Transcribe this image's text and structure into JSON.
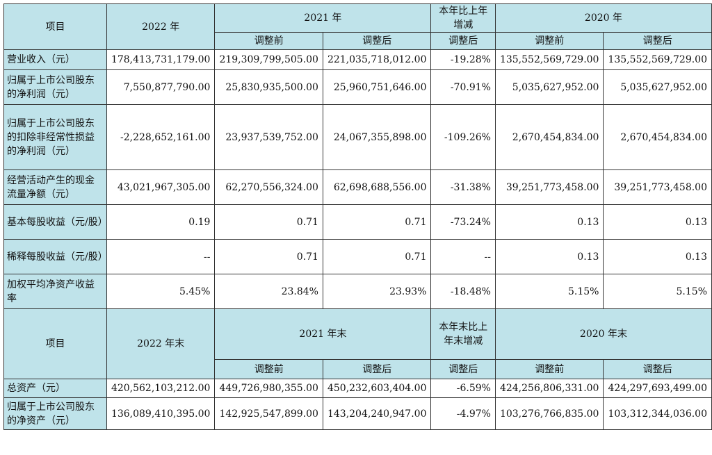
{
  "top_header": {
    "item": "项目",
    "y2022": "2022 年",
    "y2021": "2021 年",
    "yoy": "本年比上年增减",
    "y2020": "2020 年",
    "before": "调整前",
    "after": "调整后",
    "yoy_after": "调整后",
    "before_2020": "调整前",
    "after_2020": "调整后"
  },
  "rows": [
    {
      "label": "营业收入（元）",
      "v2022": "178,413,731,179.00",
      "v2021_before": "219,309,799,505.00",
      "v2021_after": "221,035,718,012.00",
      "yoy": "-19.28%",
      "v2020_before": "135,552,569,729.00",
      "v2020_after": "135,552,569,729.00"
    },
    {
      "label": "归属于上市公司股东的净利润（元）",
      "v2022": "7,550,877,790.00",
      "v2021_before": "25,830,935,500.00",
      "v2021_after": "25,960,751,646.00",
      "yoy": "-70.91%",
      "v2020_before": "5,035,627,952.00",
      "v2020_after": "5,035,627,952.00"
    },
    {
      "label": "归属于上市公司股东的扣除非经常性损益的净利润（元）",
      "v2022": "-2,228,652,161.00",
      "v2021_before": "23,937,539,752.00",
      "v2021_after": "24,067,355,898.00",
      "yoy": "-109.26%",
      "v2020_before": "2,670,454,834.00",
      "v2020_after": "2,670,454,834.00"
    },
    {
      "label": "经营活动产生的现金流量净额（元）",
      "v2022": "43,021,967,305.00",
      "v2021_before": "62,270,556,324.00",
      "v2021_after": "62,698,688,556.00",
      "yoy": "-31.38%",
      "v2020_before": "39,251,773,458.00",
      "v2020_after": "39,251,773,458.00"
    },
    {
      "label": "基本每股收益（元/股）",
      "v2022": "0.19",
      "v2021_before": "0.71",
      "v2021_after": "0.71",
      "yoy": "-73.24%",
      "v2020_before": "0.13",
      "v2020_after": "0.13"
    },
    {
      "label": "稀释每股收益（元/股）",
      "v2022": "--",
      "v2021_before": "0.71",
      "v2021_after": "0.71",
      "yoy": "--",
      "v2020_before": "0.13",
      "v2020_after": "0.13"
    },
    {
      "label": "加权平均净资产收益率",
      "v2022": "5.45%",
      "v2021_before": "23.84%",
      "v2021_after": "23.93%",
      "yoy": "-18.48%",
      "v2020_before": "5.15%",
      "v2020_after": "5.15%"
    }
  ],
  "bottom_header": {
    "item": "项目",
    "y2022": "2022 年末",
    "y2021": "2021 年末",
    "yoy": "本年末比上年末增减",
    "y2020": "2020 年末",
    "before": "调整前",
    "after": "调整后",
    "yoy_after": "调整后",
    "before_2020": "调整前",
    "after_2020": "调整后"
  },
  "bottom_rows": [
    {
      "label": "总资产（元）",
      "v2022": "420,562,103,212.00",
      "v2021_before": "449,726,980,355.00",
      "v2021_after": "450,232,603,404.00",
      "yoy": "-6.59%",
      "v2020_before": "424,256,806,331.00",
      "v2020_after": "424,297,693,499.00"
    },
    {
      "label": "归属于上市公司股东的净资产（元）",
      "v2022": "136,089,410,395.00",
      "v2021_before": "142,925,547,899.00",
      "v2021_after": "143,204,240,947.00",
      "yoy": "-4.97%",
      "v2020_before": "103,276,766,835.00",
      "v2020_after": "103,312,344,036.00"
    }
  ],
  "colors": {
    "header_bg": "#bfe3ea",
    "border": "#333333"
  }
}
